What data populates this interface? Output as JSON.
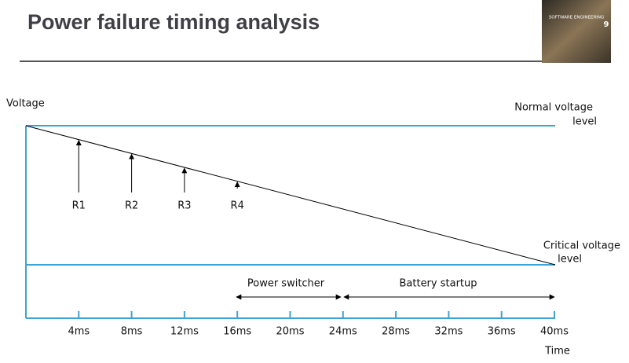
{
  "header": {
    "title": "Power failure timing analysis"
  },
  "cover": {
    "series": "SOFTWARE ENGINEERING",
    "edition": "9"
  },
  "diagram": {
    "y_axis_label": "Voltage",
    "x_axis_label": "Time",
    "levels": [
      {
        "lines": [
          "Normal voltage",
          "level"
        ]
      },
      {
        "lines": [
          "Critical voltage",
          "level"
        ]
      }
    ],
    "readings": [
      "R1",
      "R2",
      "R3",
      "R4"
    ],
    "phases": [
      "Power switcher",
      "Battery startup"
    ],
    "time_ticks": [
      "4ms",
      "8ms",
      "12ms",
      "16ms",
      "20ms",
      "24ms",
      "28ms",
      "32ms",
      "36ms",
      "40ms"
    ]
  }
}
